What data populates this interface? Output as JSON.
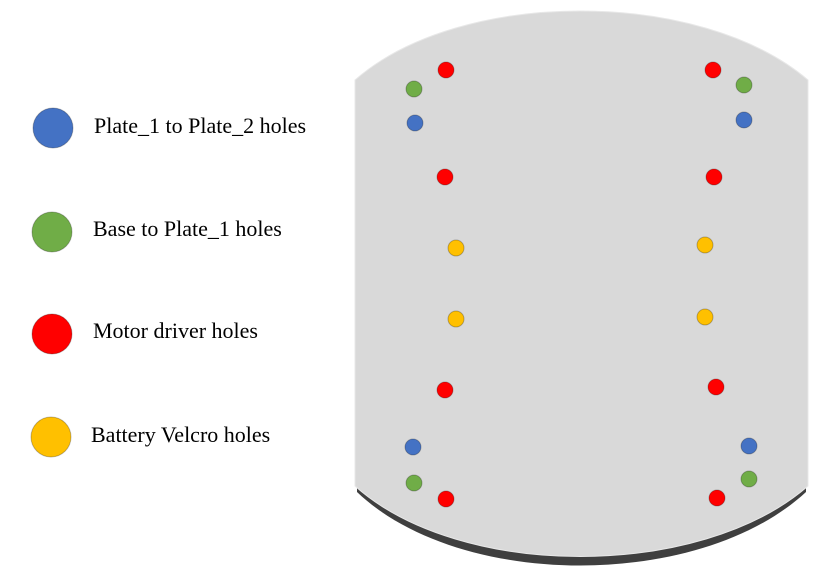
{
  "colors": {
    "plate1_to_plate2": "#4472C4",
    "base_to_plate1": "#70AD47",
    "motor_driver": "#FF0000",
    "battery_velcro": "#FFC000",
    "plate_fill": "#D9D9D9",
    "plate_shadow": "#3F3F3F",
    "plate_edge": "#E8E8E8"
  },
  "legend": [
    {
      "key": "plate1_to_plate2",
      "label": "Plate_1 to Plate_2 holes"
    },
    {
      "key": "base_to_plate1",
      "label": "Base to Plate_1 holes"
    },
    {
      "key": "motor_driver",
      "label": "Motor driver holes"
    },
    {
      "key": "battery_velcro",
      "label": "Battery Velcro holes"
    }
  ]
}
